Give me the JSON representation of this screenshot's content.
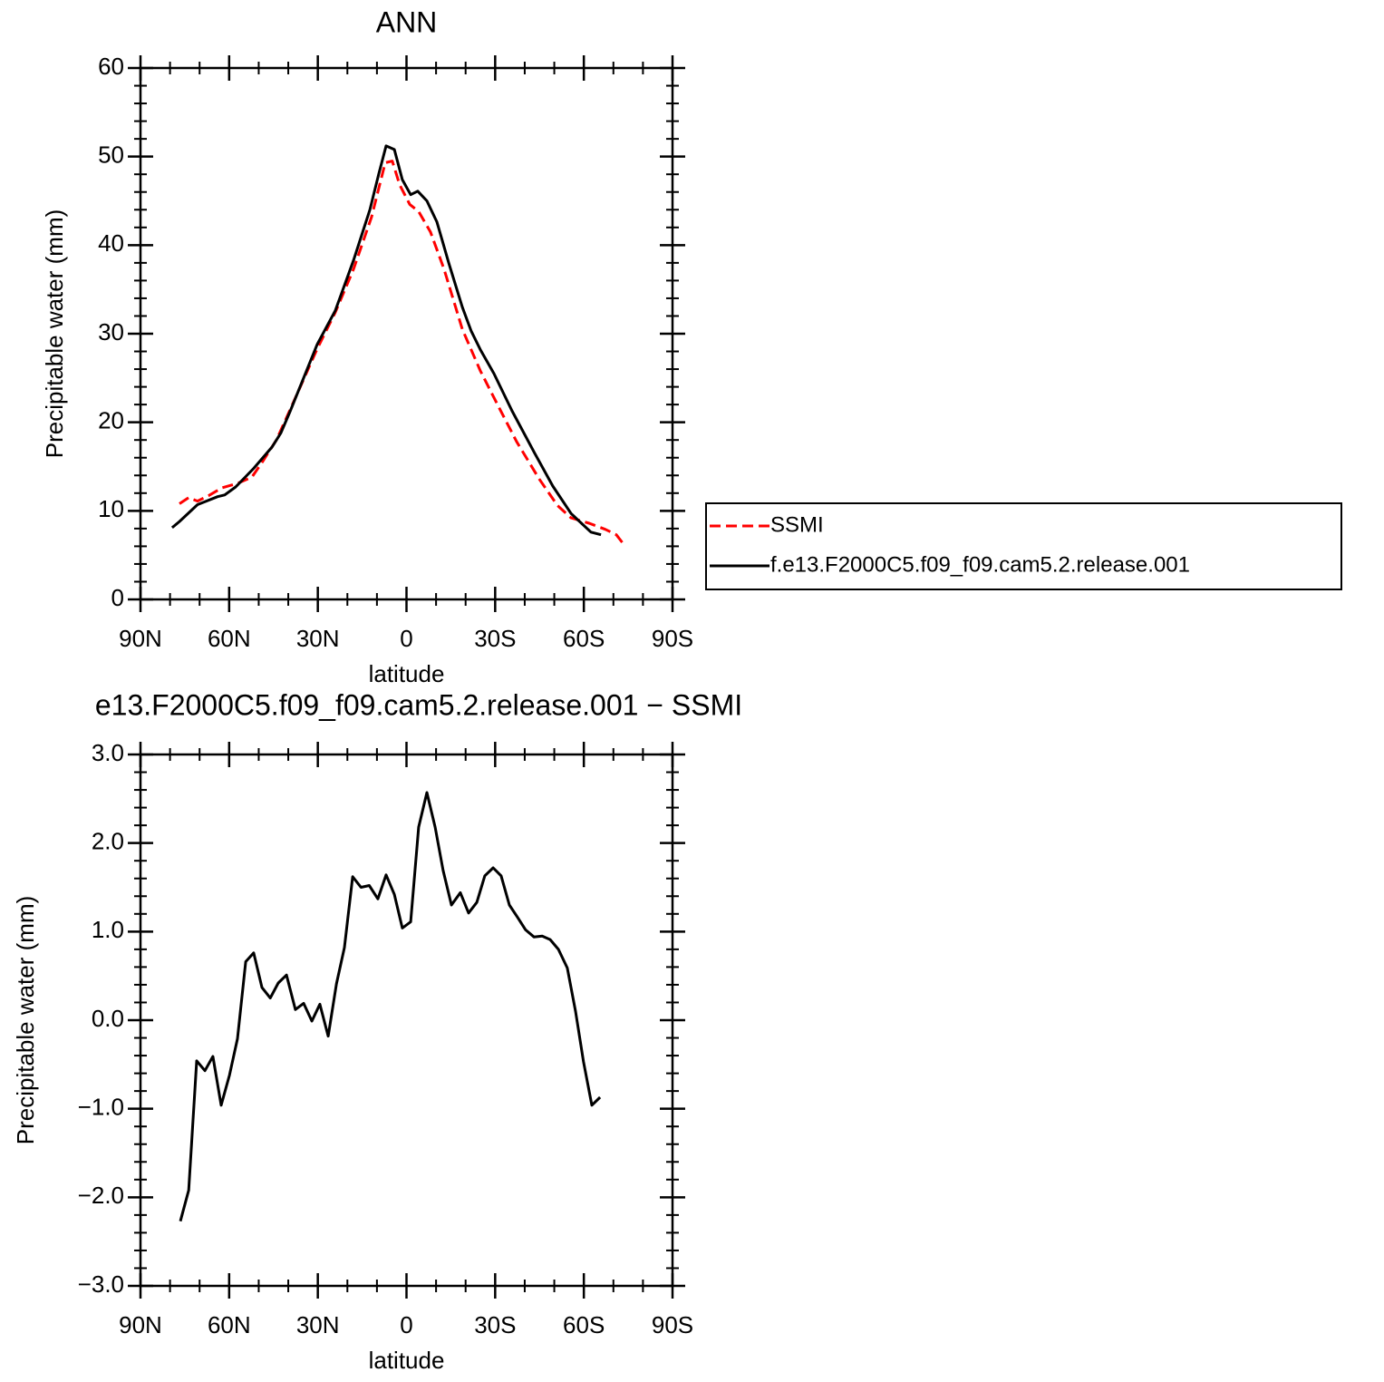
{
  "chart_data": [
    {
      "type": "line",
      "title": "ANN",
      "x_label": "latitude",
      "y_label": "Precipitable water (mm)",
      "xlim": [
        90,
        -90
      ],
      "xticks": [
        {
          "value": 90,
          "label": "90N"
        },
        {
          "value": 60,
          "label": "60N"
        },
        {
          "value": 30,
          "label": "30N"
        },
        0,
        {
          "value": -30,
          "label": "30S"
        },
        {
          "value": -60,
          "label": "60S"
        },
        {
          "value": -90,
          "label": "90S"
        }
      ],
      "ylim": [
        0,
        60
      ],
      "yticks": [
        0,
        10,
        20,
        30,
        40,
        50,
        60
      ],
      "legend": "right",
      "series": [
        {
          "name": "SSMI",
          "color": "#ff0000",
          "linestyle": "dashed",
          "x": [
            76.8,
            73.7,
            70.7,
            67,
            62.4,
            57.2,
            52.3,
            48.6,
            44,
            39.4,
            30.2,
            24.1,
            17.9,
            11.8,
            7.2,
            4.8,
            2.3,
            -1.1,
            -4.1,
            -8.1,
            -12.7,
            -18.9,
            -25,
            -31.1,
            -37.3,
            -44.9,
            -51.1,
            -55.7,
            -61.8,
            -67.3,
            -71,
            -74
          ],
          "values": [
            10.8,
            11.5,
            11.1,
            11.7,
            12.6,
            13.1,
            13.8,
            15.6,
            18,
            21.4,
            28.3,
            32.4,
            37.3,
            43.2,
            49.3,
            49.5,
            46.8,
            44.6,
            43.8,
            41.5,
            37.3,
            30.5,
            25.8,
            21.8,
            17.8,
            13.6,
            10.6,
            9.2,
            8.6,
            7.9,
            7.3,
            6
          ]
        },
        {
          "name": "f.e13.F2000C5.f09_f09.cam5.2.release.001",
          "color": "#000000",
          "linestyle": "solid",
          "x": [
            79.3,
            76.8,
            70.7,
            63.9,
            61.5,
            57.8,
            51.7,
            45.5,
            42.5,
            39.4,
            30.2,
            24.1,
            17.9,
            12.4,
            9.4,
            6.9,
            4.1,
            1.4,
            -1.4,
            -3.8,
            -6.9,
            -10.3,
            -14.3,
            -18.9,
            -21.9,
            -25,
            -29.6,
            -35.7,
            -43.4,
            -49.5,
            -55.7,
            -62.4,
            -65.8
          ],
          "values": [
            8.1,
            8.8,
            10.7,
            11.6,
            11.8,
            12.7,
            14.8,
            17.2,
            18.8,
            21.2,
            28.8,
            32.6,
            38.3,
            44,
            48,
            51.2,
            50.8,
            47.4,
            45.7,
            46.1,
            45,
            42.6,
            38,
            33,
            30.3,
            28.2,
            25.5,
            21.3,
            16.5,
            12.8,
            9.7,
            7.6,
            7.3
          ]
        }
      ]
    },
    {
      "type": "line",
      "title": "e13.F2000C5.f09_f09.cam5.2.release.001 − SSMI",
      "x_label": "latitude",
      "y_label": "Precipitable water (mm)",
      "xlim": [
        90,
        -90
      ],
      "xticks": [
        {
          "value": 90,
          "label": "90N"
        },
        {
          "value": 60,
          "label": "60N"
        },
        {
          "value": 30,
          "label": "30N"
        },
        0,
        {
          "value": -30,
          "label": "30S"
        },
        {
          "value": -60,
          "label": "60S"
        },
        {
          "value": -90,
          "label": "90S"
        }
      ],
      "ylim": [
        -3,
        3
      ],
      "yticks": [
        {
          "value": -3,
          "label": "−3.0"
        },
        {
          "value": -2,
          "label": "−2.0"
        },
        {
          "value": -1,
          "label": "−1.0"
        },
        {
          "value": 0,
          "label": "0.0"
        },
        {
          "value": 1,
          "label": "1.0"
        },
        {
          "value": 2,
          "label": "2.0"
        },
        {
          "value": 3,
          "label": "3.0"
        }
      ],
      "color": "#000000",
      "x": [
        76.5,
        73.7,
        71,
        68.2,
        65.5,
        62.7,
        59.9,
        57.2,
        54.4,
        51.7,
        48.9,
        46.1,
        43.4,
        40.6,
        37.6,
        34.8,
        32,
        29.3,
        26.5,
        23.7,
        21,
        18.2,
        15.4,
        12.6,
        9.7,
        6.9,
        4.1,
        1.4,
        -1.4,
        -4.1,
        -6.9,
        -9.7,
        -12.4,
        -15.2,
        -18.2,
        -21,
        -23.8,
        -26.5,
        -29.3,
        -32,
        -34.8,
        -37.6,
        -40.3,
        -43.1,
        -45.9,
        -48.6,
        -51.4,
        -54.4,
        -57.2,
        -59.9,
        -62.7,
        -65.5
      ],
      "values": [
        -2.27,
        -1.92,
        -0.46,
        -0.57,
        -0.41,
        -0.96,
        -0.62,
        -0.21,
        0.66,
        0.76,
        0.37,
        0.25,
        0.42,
        0.51,
        0.12,
        0.19,
        -0.01,
        0.18,
        -0.18,
        0.41,
        0.82,
        1.62,
        1.5,
        1.52,
        1.37,
        1.64,
        1.42,
        1.04,
        1.11,
        2.18,
        2.57,
        2.18,
        1.69,
        1.3,
        1.44,
        1.21,
        1.33,
        1.63,
        1.72,
        1.63,
        1.3,
        1.16,
        1.02,
        0.94,
        0.95,
        0.91,
        0.8,
        0.59,
        0.1,
        -0.47,
        -0.96,
        -0.87
      ]
    }
  ]
}
